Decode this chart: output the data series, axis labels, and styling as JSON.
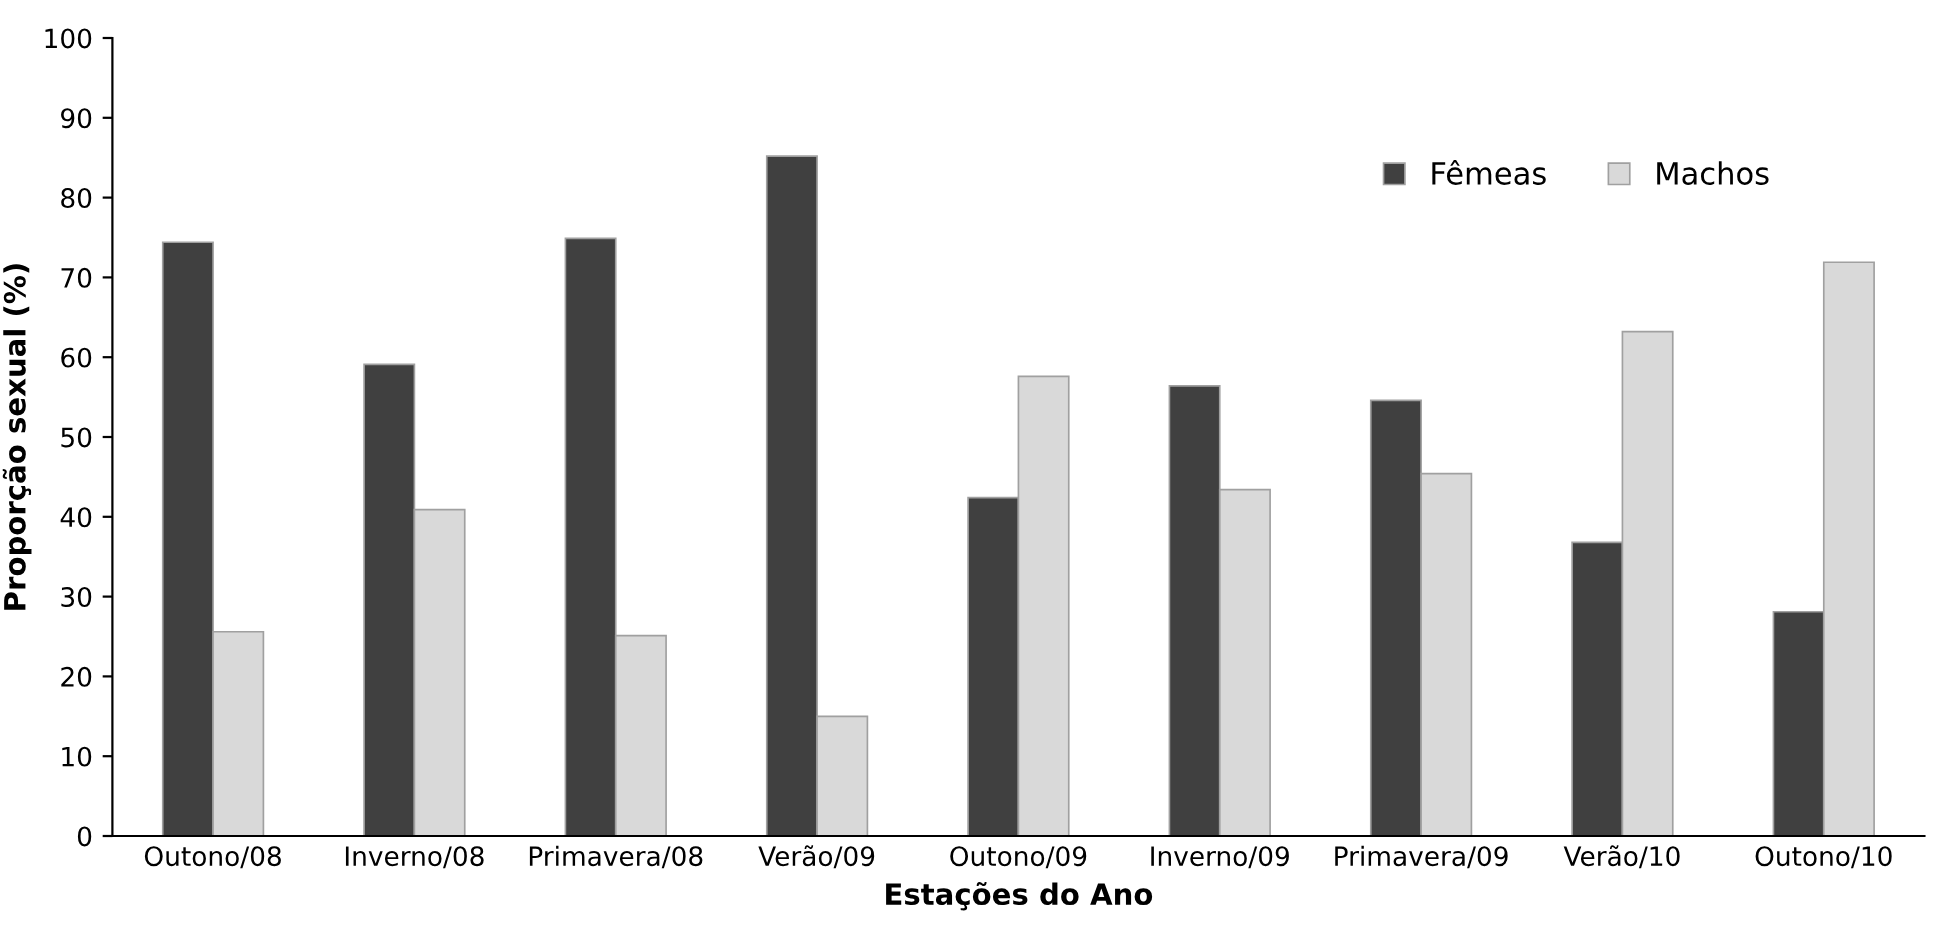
{
  "chart_data": {
    "type": "bar",
    "xlabel": "Estações do Ano",
    "ylabel": "Proporção sexual (%)",
    "categories": [
      "Outono/08",
      "Inverno/08",
      "Primavera/08",
      "Verão/09",
      "Outono/09",
      "Inverno/09",
      "Primavera/09",
      "Verão/10",
      "Outono/10"
    ],
    "series": [
      {
        "name": "Fêmeas",
        "color": "#404040",
        "values": [
          74.4,
          59.1,
          74.9,
          85.2,
          42.4,
          56.4,
          54.6,
          36.8,
          28.1
        ]
      },
      {
        "name": "Machos",
        "color": "#d9d9d9",
        "values": [
          25.6,
          40.9,
          25.1,
          15.0,
          57.6,
          43.4,
          45.4,
          63.2,
          71.9
        ]
      }
    ],
    "ylim": [
      0,
      100
    ],
    "yticks": [
      0,
      10,
      20,
      30,
      40,
      50,
      60,
      70,
      80,
      90,
      100
    ],
    "grid": false,
    "legend": "top right"
  }
}
